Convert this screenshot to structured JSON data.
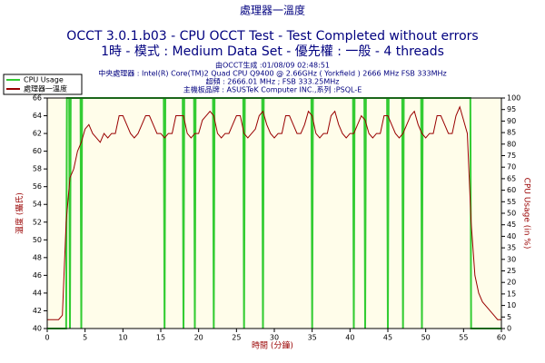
{
  "chart_data": {
    "type": "line",
    "title": "處理器一溫度",
    "subtitle": "OCCT 3.0.1.b03 - CPU OCCT Test - Test Completed without errors",
    "subtitle2": "1時 - 模式 : Medium Data Set - 優先權 : 一般 - 4 threads",
    "info": [
      "由OCCT生成 :01/08/09 02:48:51",
      "中央處理器 : Intel(R) Core(TM)2 Quad CPU Q9400 @ 2.66GHz ( Yorkfield ) 2666 MHz FSB 333MHz",
      "超頻 : 2666.01 MHz ; FSB 333.25MHz",
      "主機板品牌 : ASUSTeK Computer INC.,系列 :PSQL-E"
    ],
    "xlabel": "時間 (分鐘)",
    "ylabel": "溫度 (攝氏)",
    "y2label": "CPU Usage (in %)",
    "legend": "top-left",
    "series": [
      {
        "name": "CPU Usage",
        "color": "#33cc33",
        "axis": "y2",
        "x": [
          0,
          2.5,
          2.6,
          2.9,
          3,
          3.1,
          4.4,
          4.5,
          4.6,
          15.4,
          15.5,
          15.6,
          17.9,
          18,
          18.1,
          19.4,
          19.5,
          19.6,
          21.9,
          22,
          22.1,
          25.9,
          26,
          26.1,
          28.4,
          28.5,
          28.6,
          34.9,
          35,
          35.1,
          40.4,
          40.5,
          40.6,
          41.9,
          42,
          42.1,
          44.9,
          45,
          45.1,
          46.9,
          47,
          47.1,
          49.4,
          49.5,
          49.6,
          55.9,
          56,
          60
        ],
        "values": [
          0,
          0,
          100,
          100,
          0,
          100,
          100,
          0,
          100,
          100,
          0,
          100,
          100,
          0,
          100,
          100,
          0,
          100,
          100,
          0,
          100,
          100,
          0,
          100,
          100,
          0,
          100,
          100,
          0,
          100,
          100,
          0,
          100,
          100,
          0,
          100,
          100,
          0,
          100,
          100,
          0,
          100,
          100,
          0,
          100,
          100,
          0,
          0
        ]
      },
      {
        "name": "處理器一溫度",
        "color": "#990000",
        "x": [
          0,
          0.5,
          1,
          1.5,
          2,
          2.5,
          3,
          3.5,
          4,
          4.5,
          5,
          5.5,
          6,
          6.5,
          7,
          7.5,
          8,
          8.5,
          9,
          9.5,
          10,
          10.5,
          11,
          11.5,
          12,
          12.5,
          13,
          13.5,
          14,
          14.5,
          15,
          15.5,
          16,
          16.5,
          17,
          17.5,
          18,
          18.5,
          19,
          19.5,
          20,
          20.5,
          21,
          21.5,
          22,
          22.5,
          23,
          23.5,
          24,
          24.5,
          25,
          25.5,
          26,
          26.5,
          27,
          27.5,
          28,
          28.5,
          29,
          29.5,
          30,
          30.5,
          31,
          31.5,
          32,
          32.5,
          33,
          33.5,
          34,
          34.5,
          35,
          35.5,
          36,
          36.5,
          37,
          37.5,
          38,
          38.5,
          39,
          39.5,
          40,
          40.5,
          41,
          41.5,
          42,
          42.5,
          43,
          43.5,
          44,
          44.5,
          45,
          45.5,
          46,
          46.5,
          47,
          47.5,
          48,
          48.5,
          49,
          49.5,
          50,
          50.5,
          51,
          51.5,
          52,
          52.5,
          53,
          53.5,
          54,
          54.5,
          55,
          55.5,
          56,
          56.5,
          57,
          57.5,
          58,
          58.5,
          59,
          59.5,
          60
        ],
        "values": [
          41,
          41,
          41,
          41,
          41.5,
          52,
          57,
          58,
          60,
          61,
          62.5,
          63,
          62,
          61.5,
          61,
          62,
          61.5,
          62,
          62,
          64,
          64,
          63,
          62,
          61.5,
          62,
          63,
          64,
          64,
          63,
          62,
          62,
          61.5,
          62,
          62,
          64,
          64,
          64,
          62,
          61.5,
          62,
          62,
          63.5,
          64,
          64.5,
          64,
          62,
          61.5,
          62,
          62,
          63,
          64,
          64,
          62,
          61.5,
          62,
          62.5,
          64,
          64.5,
          63,
          62,
          61.5,
          62,
          62,
          64,
          64,
          63,
          62,
          62,
          63,
          64.5,
          64,
          62,
          61.5,
          62,
          62,
          64,
          64.5,
          63,
          62,
          61.5,
          62,
          62,
          63,
          64,
          63.5,
          62,
          61.5,
          62,
          62,
          64,
          64,
          63,
          62,
          61.5,
          62,
          63,
          64,
          64.5,
          63,
          62,
          61.5,
          62,
          62,
          64,
          64,
          63,
          62,
          62,
          64,
          65,
          63.5,
          62,
          52,
          46,
          44,
          43,
          42.5,
          42,
          41.5,
          41,
          41
        ]
      }
    ],
    "xlim": [
      0,
      60
    ],
    "xticks": [
      0,
      5,
      10,
      15,
      20,
      25,
      30,
      35,
      40,
      45,
      50,
      55,
      60
    ],
    "ylim": [
      40,
      66
    ],
    "yticks": [
      40,
      42,
      44,
      46,
      48,
      50,
      52,
      54,
      56,
      58,
      60,
      62,
      64,
      66
    ],
    "y2lim": [
      0,
      100
    ],
    "y2ticks": [
      0,
      5,
      10,
      15,
      20,
      25,
      30,
      35,
      40,
      45,
      50,
      55,
      60,
      65,
      70,
      75,
      80,
      85,
      90,
      95,
      100
    ]
  }
}
